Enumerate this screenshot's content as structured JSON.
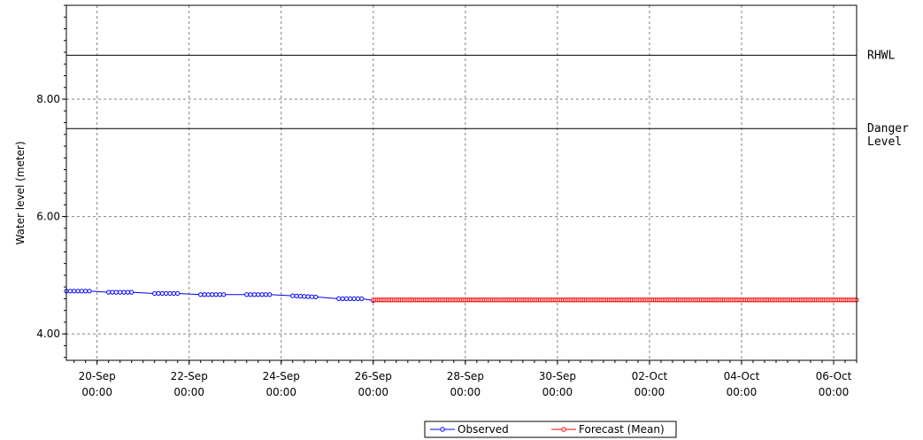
{
  "chart_data": {
    "type": "line",
    "title": "",
    "ylabel": "Water level (meter)",
    "xlabel": "",
    "x_start": "2015-09-19 08:00",
    "x_end": "2015-10-06 12:00",
    "ylim": [
      3.55,
      9.6
    ],
    "grid": true,
    "yticks": [
      {
        "value": 4.0,
        "label": "4.00"
      },
      {
        "value": 6.0,
        "label": "6.00"
      },
      {
        "value": 8.0,
        "label": "8.00"
      }
    ],
    "yminor_step": 0.2,
    "xticks": [
      {
        "date": "2015-09-20 00:00",
        "line1": "20-Sep",
        "line2": "00:00"
      },
      {
        "date": "2015-09-22 00:00",
        "line1": "22-Sep",
        "line2": "00:00"
      },
      {
        "date": "2015-09-24 00:00",
        "line1": "24-Sep",
        "line2": "00:00"
      },
      {
        "date": "2015-09-26 00:00",
        "line1": "26-Sep",
        "line2": "00:00"
      },
      {
        "date": "2015-09-28 00:00",
        "line1": "28-Sep",
        "line2": "00:00"
      },
      {
        "date": "2015-09-30 00:00",
        "line1": "30-Sep",
        "line2": "00:00"
      },
      {
        "date": "2015-10-02 00:00",
        "line1": "02-Oct",
        "line2": "00:00"
      },
      {
        "date": "2015-10-04 00:00",
        "line1": "04-Oct",
        "line2": "00:00"
      },
      {
        "date": "2015-10-06 00:00",
        "line1": "06-Oct",
        "line2": "00:00"
      }
    ],
    "reference_lines": [
      {
        "value": 8.75,
        "lines": [
          "RHWL"
        ]
      },
      {
        "value": 7.5,
        "lines": [
          "Danger",
          "Level"
        ]
      }
    ],
    "series": [
      {
        "name": "Observed",
        "color": "#0000ff",
        "segments": [
          {
            "start": "2015-09-19 08:00",
            "end": "2015-09-19 20:00",
            "y_start": 4.73,
            "y_end": 4.73
          },
          {
            "start": "2015-09-20 06:00",
            "end": "2015-09-20 18:00",
            "y_start": 4.71,
            "y_end": 4.71
          },
          {
            "start": "2015-09-21 06:00",
            "end": "2015-09-21 18:00",
            "y_start": 4.69,
            "y_end": 4.69
          },
          {
            "start": "2015-09-22 06:00",
            "end": "2015-09-22 18:00",
            "y_start": 4.67,
            "y_end": 4.67
          },
          {
            "start": "2015-09-23 06:00",
            "end": "2015-09-23 18:00",
            "y_start": 4.67,
            "y_end": 4.67
          },
          {
            "start": "2015-09-24 06:00",
            "end": "2015-09-24 18:00",
            "y_start": 4.65,
            "y_end": 4.63
          },
          {
            "start": "2015-09-25 06:00",
            "end": "2015-09-25 18:00",
            "y_start": 4.6,
            "y_end": 4.6
          },
          {
            "start": "2015-09-26 00:00",
            "end": "2015-09-26 00:00",
            "y_start": 4.57,
            "y_end": 4.57
          }
        ]
      },
      {
        "name": "Forecast (Mean)",
        "color": "#ff0000",
        "start": "2015-09-26 00:00",
        "end": "2015-10-06 12:00",
        "value": 4.58
      }
    ],
    "legend": {
      "position": "bottom-center",
      "entries": [
        "Observed",
        "Forecast (Mean)"
      ]
    }
  }
}
